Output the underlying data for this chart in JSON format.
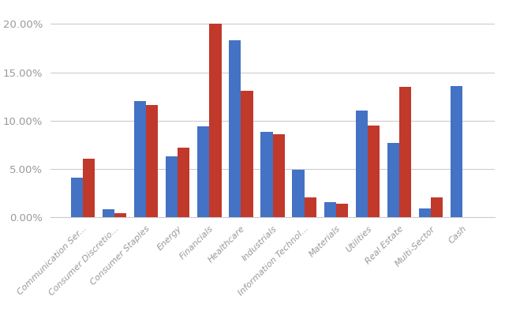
{
  "categories": [
    "Communication Ser...",
    "Consumer Discretio...",
    "Consumer Staples",
    "Energy",
    "Financials",
    "Healthcare",
    "Industrials",
    "Information Technol...",
    "Materials",
    "Utilities",
    "Real Estate",
    "Multi-Sector",
    "Cash"
  ],
  "blue_values": [
    4.1,
    0.8,
    12.0,
    6.3,
    9.4,
    18.3,
    8.8,
    4.9,
    1.5,
    11.0,
    7.7,
    0.9,
    13.6
  ],
  "red_values": [
    6.0,
    0.4,
    11.6,
    7.2,
    20.0,
    13.1,
    8.6,
    2.0,
    1.4,
    9.5,
    13.5,
    2.0,
    0.0
  ],
  "blue_color": "#4472C4",
  "red_color": "#C0392B",
  "background_color": "#FFFFFF",
  "grid_color": "#CCCCCC",
  "yticks": [
    0.0,
    5.0,
    10.0,
    15.0,
    20.0
  ],
  "ylim": [
    0,
    21.5
  ],
  "bar_width": 0.38,
  "tick_color": "#999999",
  "label_fontsize": 8.0,
  "ytick_fontsize": 9.5
}
